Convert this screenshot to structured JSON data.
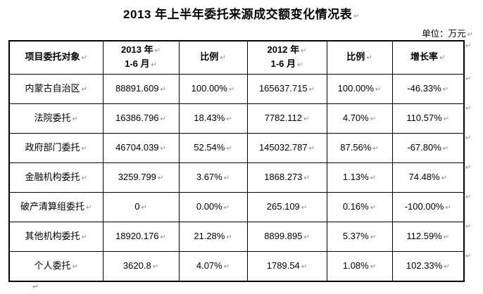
{
  "page": {
    "title": "2013 年上半年委托来源成交额变化情况表",
    "unit_label": "单位：万元"
  },
  "marks": {
    "pilcrow": "↵"
  },
  "table": {
    "headers": {
      "col1": "项目委托对象",
      "col2_line1": "2013 年",
      "col2_line2": "1-6 月",
      "col3": "比例",
      "col4_line1": "2012 年",
      "col4_line2": "1-6 月",
      "col5": "比例",
      "col6": "增长率"
    },
    "rows": [
      [
        "内蒙古自治区",
        "88891.609",
        "100.00%",
        "165637.715",
        "100.00%",
        "-46.33%"
      ],
      [
        "法院委托",
        "16386.796",
        "18.43%",
        "7782.112",
        "4.70%",
        "110.57%"
      ],
      [
        "政府部门委托",
        "46704.039",
        "52.54%",
        "145032.787",
        "87.56%",
        "-67.80%"
      ],
      [
        "金融机构委托",
        "3259.799",
        "3.67%",
        "1868.273",
        "1.13%",
        "74.48%"
      ],
      [
        "破产清算组委托",
        "0",
        "0.00%",
        "265.109",
        "0.16%",
        "-100.00%"
      ],
      [
        "其他机构委托",
        "18920.176",
        "21.28%",
        "8899.895",
        "5.37%",
        "112.59%"
      ],
      [
        "个人委托",
        "3620.8",
        "4.07%",
        "1789.54",
        "1.08%",
        "102.33%"
      ]
    ]
  }
}
